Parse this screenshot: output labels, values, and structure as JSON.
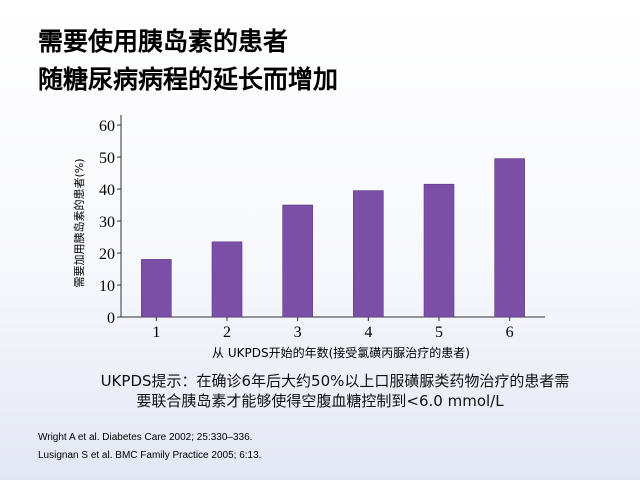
{
  "title_lines": [
    "需要使用胰岛素的患者",
    "随糖尿病病程的延长而增加"
  ],
  "chart_data": {
    "type": "bar",
    "categories": [
      "1",
      "2",
      "3",
      "4",
      "5",
      "6"
    ],
    "values": [
      18,
      23.5,
      35,
      39.5,
      41.5,
      49.5
    ],
    "title": "",
    "xlabel": "从 UKPDS开始的年数(接受氯磺丙脲治疗的患者)",
    "ylabel": "需要加用胰岛素的患者(%)",
    "ylim": [
      0,
      60
    ],
    "yticks": [
      "0",
      "10",
      "20",
      "30",
      "40",
      "50",
      "60"
    ],
    "grid": false,
    "bar_color": "#7b4fa6"
  },
  "notes": [
    "UKPDS提示：在确诊6年后大约50%以上口服磺脲类药物治疗的患者需",
    "要联合胰岛素才能够使得空腹血糖控制到<6.0 mmol/L"
  ],
  "references": [
    "Wright A et al. Diabetes Care 2002; 25:330–336.",
    "Lusignan S et al. BMC Family Practice 2005; 6:13."
  ]
}
